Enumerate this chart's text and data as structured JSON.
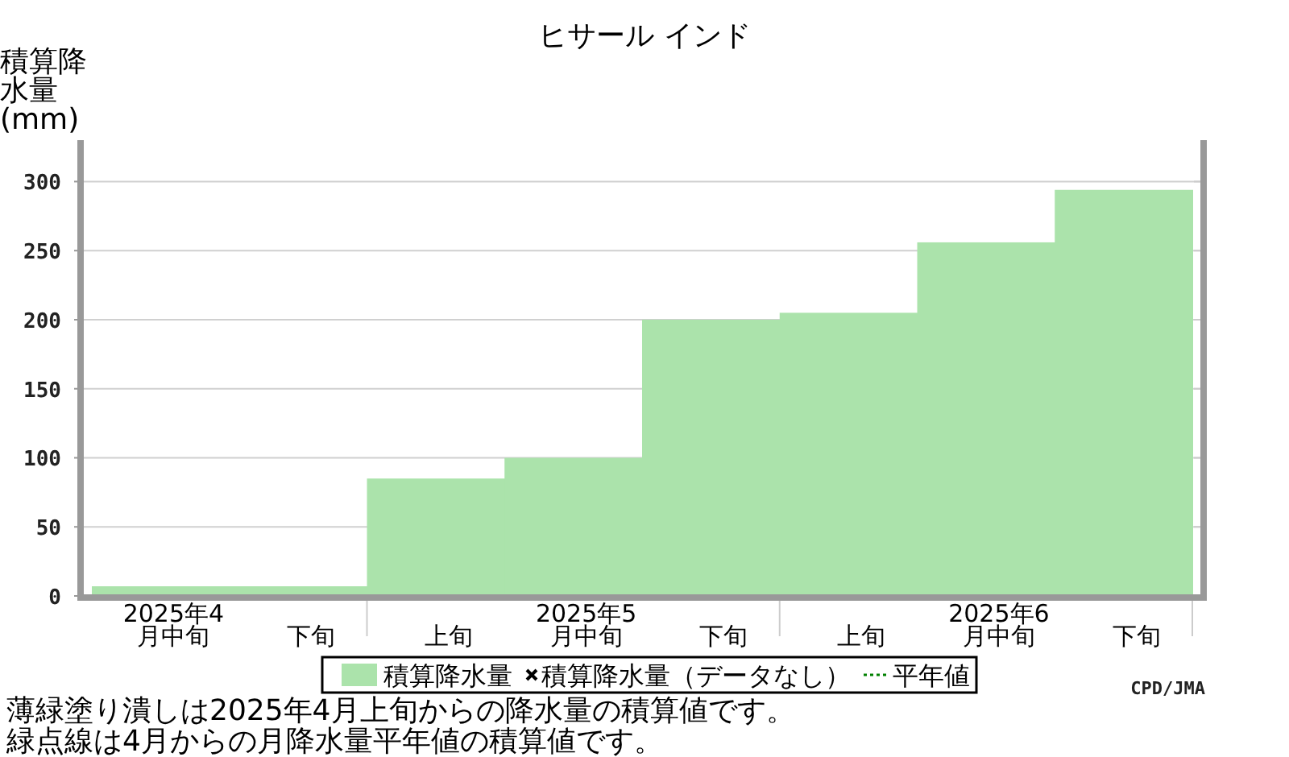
{
  "chart_data": {
    "type": "bar",
    "title": "ヒサール インド",
    "ylabel": "積算降水量(mm)",
    "categories": [
      "2025年4月中旬",
      "下旬",
      "上旬",
      "2025年5月中旬",
      "下旬",
      "上旬",
      "2025年6月中旬",
      "下旬"
    ],
    "series": [
      {
        "name": "積算降水量",
        "color": "#abe3ab",
        "values": [
          7,
          7,
          85,
          100,
          200,
          205,
          256,
          294
        ]
      },
      {
        "name": "積算降水量（データなし）",
        "type": "scatter",
        "marker": "cross",
        "color": "#000000",
        "values": [
          null,
          null,
          null,
          null,
          null,
          null,
          null,
          null
        ]
      },
      {
        "name": "平年値",
        "type": "line",
        "line_style": "dotted",
        "color": "#008000",
        "values": [
          null,
          null,
          null,
          null,
          null,
          null,
          null,
          null
        ]
      }
    ],
    "ylim": [
      0,
      330
    ],
    "yticks": [
      0,
      50,
      100,
      150,
      200,
      250,
      300
    ],
    "grid": "y",
    "legend": "bottom",
    "annotations": [
      "CPD/JMA",
      "薄緑塗り潰しは2025年4月上旬からの降水量の積算値です。",
      "緑点線は4月からの月降水量平年値の積算値です。"
    ]
  }
}
